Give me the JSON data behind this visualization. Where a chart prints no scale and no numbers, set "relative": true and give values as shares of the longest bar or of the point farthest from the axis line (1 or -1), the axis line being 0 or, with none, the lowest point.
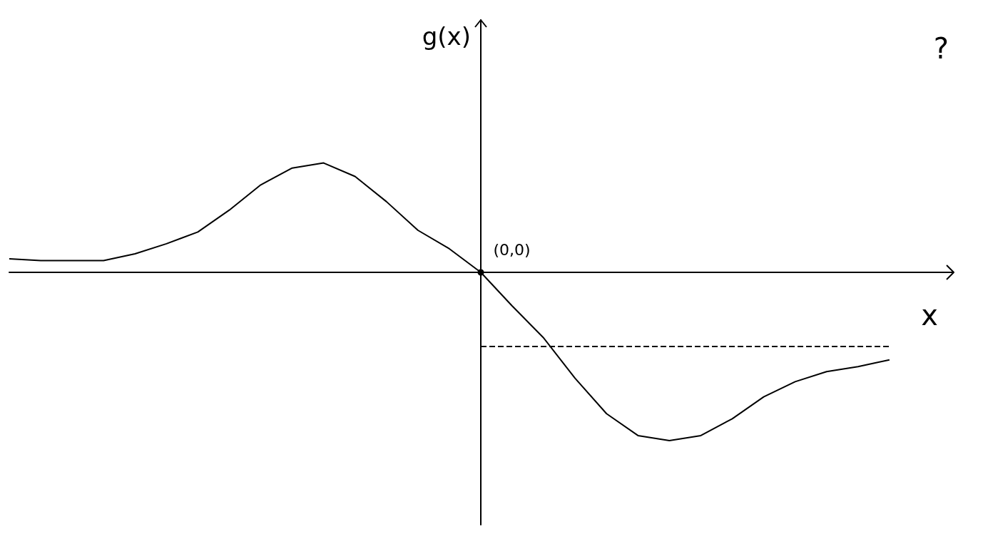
{
  "chart_data": {
    "type": "line",
    "relative": true,
    "xlabel": "x",
    "ylabel": "g(x)",
    "annotations": [
      "(0,0)",
      "?"
    ],
    "categories": [
      null,
      null,
      null,
      null,
      null,
      null,
      null,
      null,
      null,
      null,
      null,
      null,
      null,
      null,
      null,
      null,
      null,
      null,
      null,
      null,
      null,
      null,
      null,
      null,
      null,
      null,
      null,
      null,
      null,
      null,
      null
    ],
    "series": [
      {
        "color": "#000000",
        "values": [
          0.08,
          0.07,
          0.07,
          0.07,
          0.11,
          0.17,
          0.24,
          0.37,
          0.52,
          0.62,
          0.65,
          0.57,
          0.42,
          0.25,
          0.14,
          0,
          -0.2,
          -0.39,
          -0.63,
          -0.84,
          -0.97,
          -1,
          -0.97,
          -0.87,
          -0.74,
          -0.65,
          -0.59,
          -0.56,
          -0.52,
          null,
          null
        ]
      }
    ],
    "ref_lines": [
      {
        "axis": "y",
        "value": -0.44,
        "line_style": "dashed",
        "color": "#000000"
      }
    ],
    "grid": false,
    "marker": "none",
    "line_style": "solid"
  }
}
